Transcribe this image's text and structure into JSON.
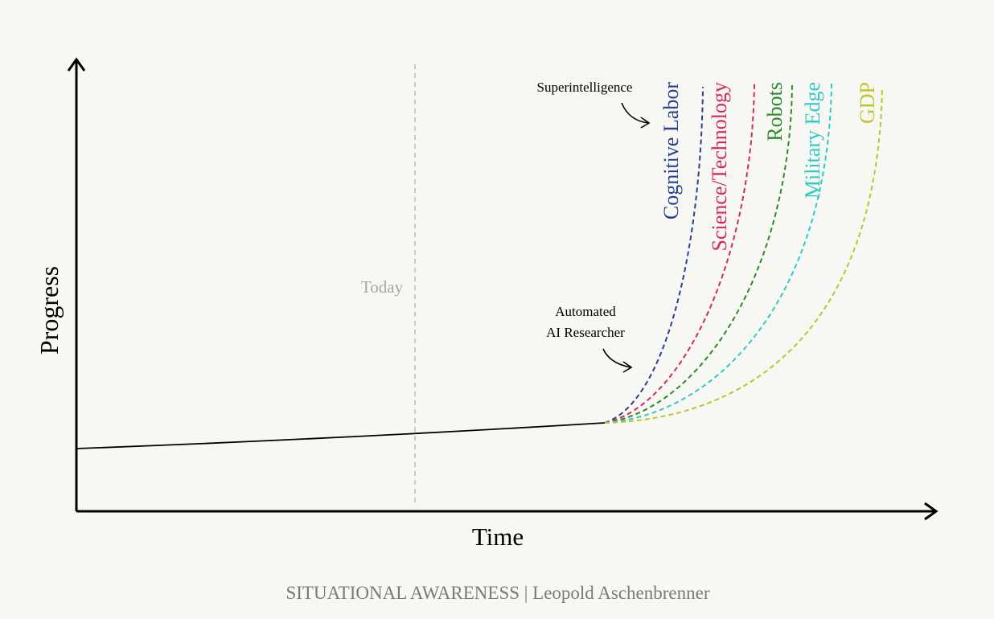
{
  "axes": {
    "x_label": "Time",
    "y_label": "Progress"
  },
  "today_label": "Today",
  "annotations": {
    "automated_ai_researcher": [
      "Automated",
      "AI Researcher"
    ],
    "superintelligence": "Superintelligence"
  },
  "curves": [
    {
      "label": "Cognitive Labor",
      "color": "#2a3f8f"
    },
    {
      "label": "Science/Technology",
      "color": "#d62a52"
    },
    {
      "label": "Robots",
      "color": "#2a8a2a"
    },
    {
      "label": "Military Edge",
      "color": "#2fc9c6"
    },
    {
      "label": "GDP",
      "color": "#c2c32c"
    }
  ],
  "credit": "SITUATIONAL AWARENESS | Leopold Aschenbrenner"
}
